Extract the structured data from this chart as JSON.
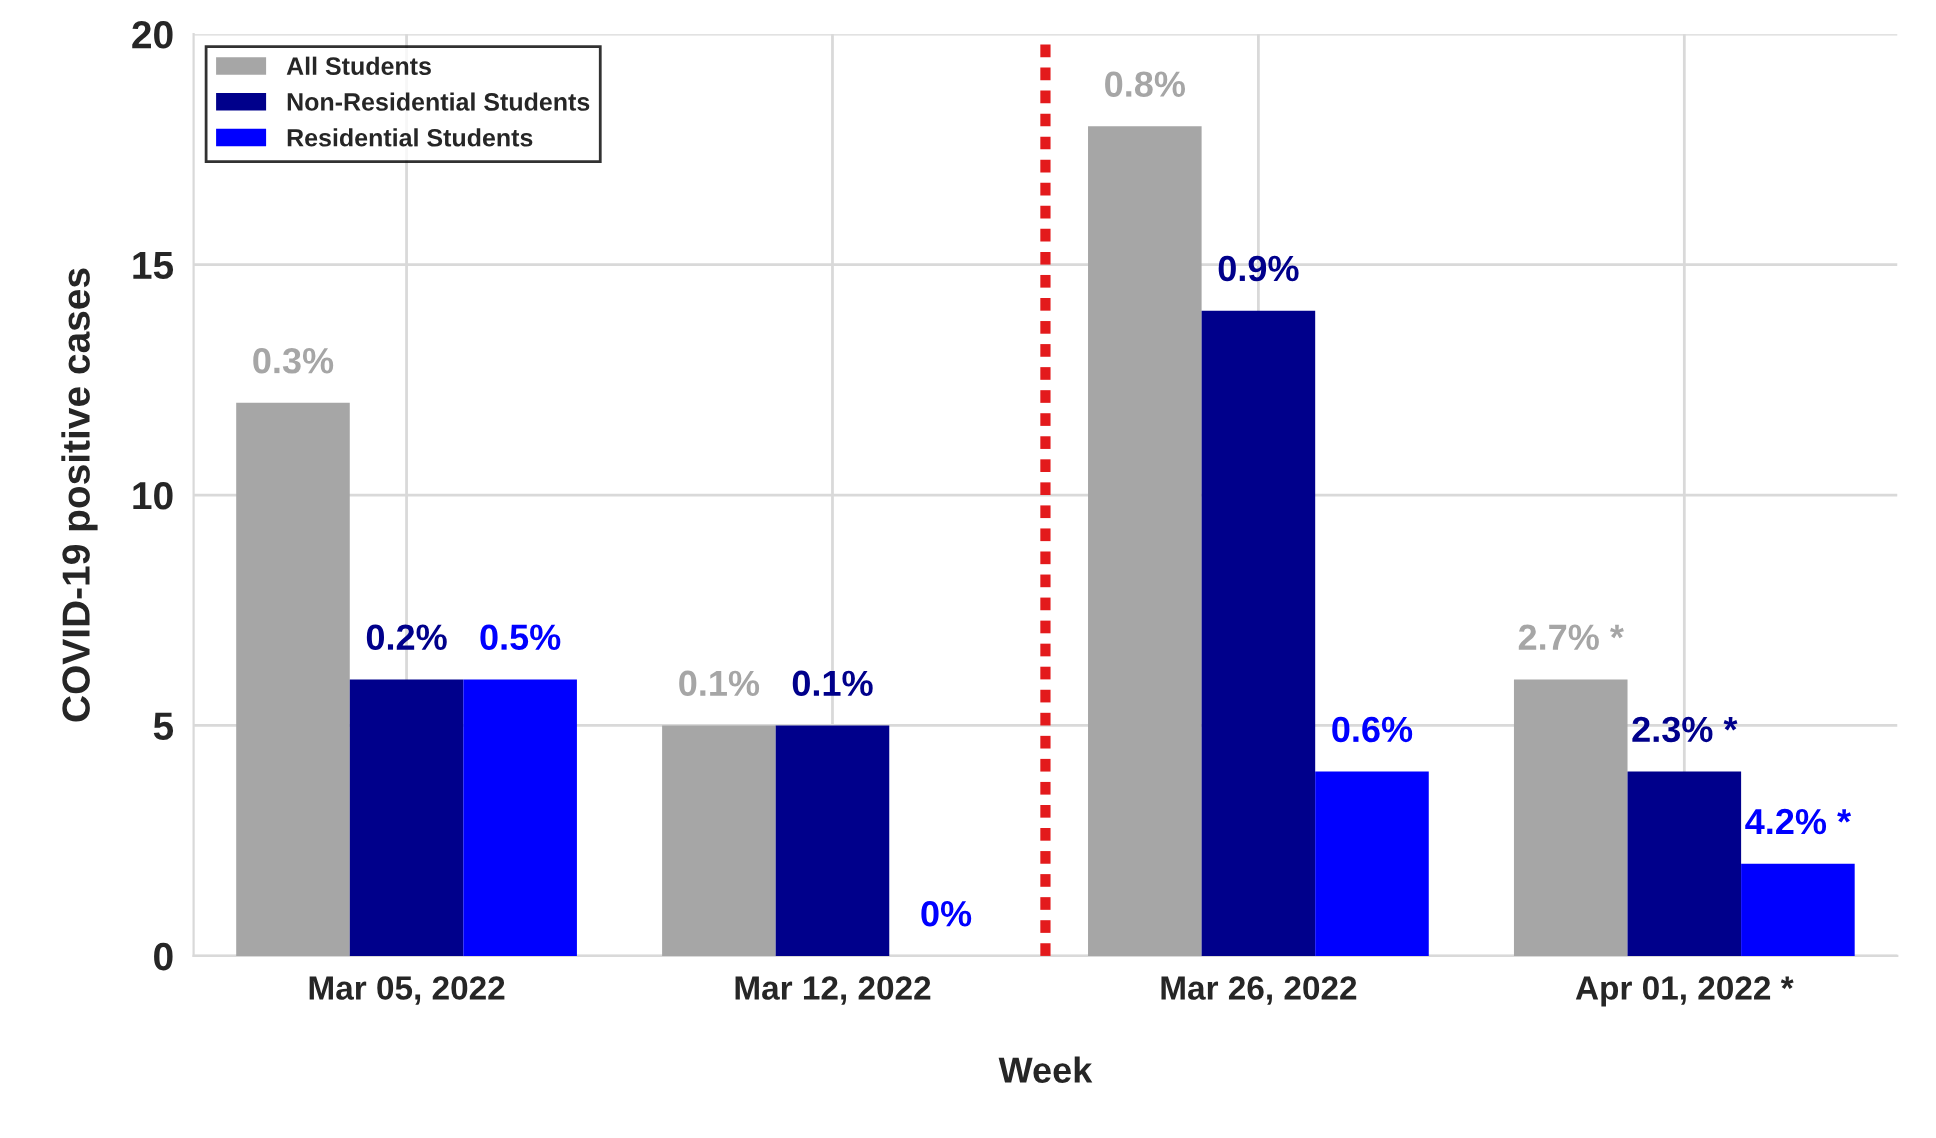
{
  "chart_data": {
    "type": "bar",
    "xlabel": "Week",
    "ylabel": "COVID-19 positive cases",
    "categories": [
      "Mar 05, 2022",
      "Mar 12, 2022",
      "Mar 26, 2022",
      "Apr 01, 2022 *"
    ],
    "series": [
      {
        "name": "All Students",
        "color": "#a6a6a6",
        "values": [
          12,
          5,
          18,
          6
        ]
      },
      {
        "name": "Non-Residential Students",
        "color": "#00008b",
        "values": [
          6,
          5,
          14,
          4
        ]
      },
      {
        "name": "Residential Students",
        "color": "#0000ff",
        "values": [
          6,
          0,
          4,
          2
        ]
      }
    ],
    "annotations": [
      "0.3%",
      "0.1%",
      "0.8%",
      "2.7% *",
      "0.2%",
      "0.1%",
      "0.9%",
      "2.3% *",
      "0.5%",
      "0%",
      "0.6%",
      "4.2% *"
    ],
    "ylim": [
      0,
      20
    ],
    "yticks": [
      0,
      5,
      10,
      15,
      20
    ],
    "grid": true,
    "legend": "top left"
  }
}
